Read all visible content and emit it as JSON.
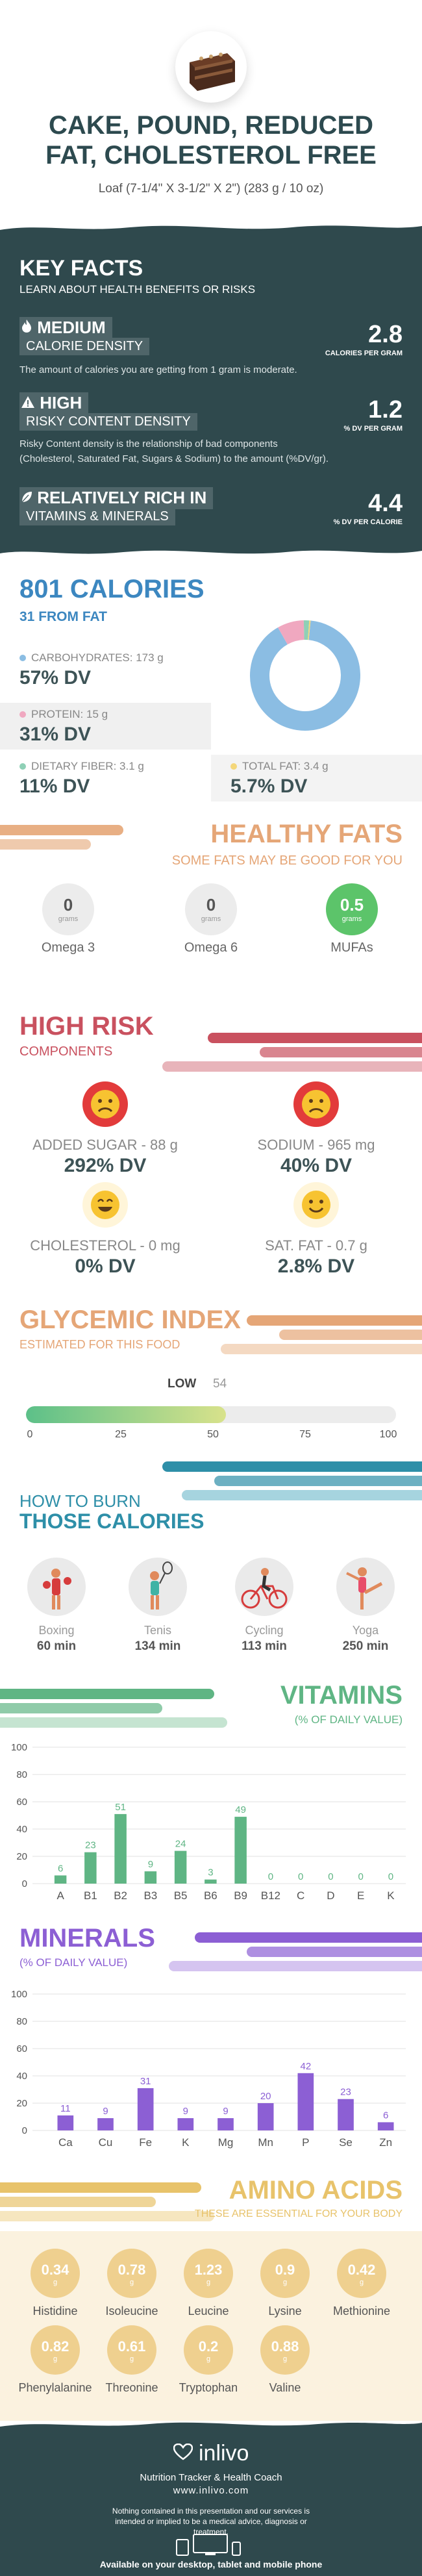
{
  "header": {
    "title_line1": "CAKE, POUND, REDUCED",
    "title_line2": "FAT, CHOLESTEROL FREE",
    "serving": "Loaf (7-1/4\" X 3-1/2\" X 2\") (283 g / 10 oz)"
  },
  "key_facts": {
    "title": "KEY FACTS",
    "subtitle": "LEARN ABOUT HEALTH BENEFITS OR RISKS",
    "calorie_density": {
      "level": "MEDIUM",
      "label": "CALORIE DENSITY",
      "description": "The amount of calories you are getting from 1 gram is moderate.",
      "value": "2.8",
      "unit": "CALORIES PER GRAM",
      "icon": "flame-icon"
    },
    "risky_content": {
      "level": "HIGH",
      "label": "RISKY CONTENT DENSITY",
      "description_line1": "Risky Content density is the relationship of bad components",
      "description_line2": "(Cholesterol, Saturated Fat, Sugars & Sodium) to the amount (%DV/gr).",
      "value": "1.2",
      "unit": "% DV PER GRAM",
      "icon": "warning-icon"
    },
    "vitamins_minerals": {
      "level": "RELATIVELY RICH  IN",
      "label": "VITAMINS & MINERALS",
      "value": "4.4",
      "unit": "% DV PER CALORIE",
      "icon": "leaf-icon"
    }
  },
  "calories": {
    "title": "801 CALORIES",
    "from_fat": "31 FROM FAT",
    "carbohydrates": {
      "label": "CARBOHYDRATES: 173 g",
      "dv": "57% DV",
      "color": "#8bbde3"
    },
    "protein": {
      "label": "PROTEIN: 15 g",
      "dv": "31% DV",
      "color": "#f0a8c0"
    },
    "fiber": {
      "label": "DIETARY FIBER: 3.1 g",
      "dv": "11% DV",
      "color": "#8fd0b6"
    },
    "fat": {
      "label": "TOTAL FAT: 3.4 g",
      "dv": "5.7% DV",
      "color": "#f4d77a"
    },
    "donut_fractions": [
      0.902,
      0.078,
      0.016,
      0.004
    ]
  },
  "healthy_fats": {
    "title": "HEALTHY FATS",
    "subtitle": "SOME FATS MAY BE GOOD FOR YOU",
    "grams_label": "grams",
    "items": [
      {
        "name": "Omega 3",
        "value": "0"
      },
      {
        "name": "Omega 6",
        "value": "0"
      },
      {
        "name": "MUFAs",
        "value": "0.5"
      }
    ],
    "color": "#e5a677",
    "highlight": "#5cc46a"
  },
  "high_risk": {
    "title": "HIGH RISK",
    "subtitle": "COMPONENTS",
    "color": "#c9515f",
    "items": [
      {
        "label": "ADDED SUGAR - 88 g",
        "dv": "292% DV",
        "face": "sick-face-icon"
      },
      {
        "label": "SODIUM - 965 mg",
        "dv": "40% DV",
        "face": "sad-face-icon"
      },
      {
        "label": "CHOLESTEROL - 0 mg",
        "dv": "0% DV",
        "face": "happy-face-icon"
      },
      {
        "label": "SAT. FAT - 0.7 g",
        "dv": "2.8% DV",
        "face": "smile-face-icon"
      }
    ]
  },
  "glycemic": {
    "title": "GLYCEMIC INDEX",
    "subtitle": "ESTIMATED FOR THIS FOOD",
    "level": "LOW",
    "value": "54",
    "value_num": 54,
    "ticks": [
      "0",
      "25",
      "50",
      "75",
      "100"
    ],
    "color": "#e5a677"
  },
  "burn": {
    "title_line1": "HOW TO BURN",
    "title_line2": "THOSE CALORIES",
    "color": "#2e8fa8",
    "activities": [
      {
        "name": "Boxing",
        "minutes": "60 min",
        "icon": "boxing-icon"
      },
      {
        "name": "Tenis",
        "minutes": "134 min",
        "icon": "tennis-icon"
      },
      {
        "name": "Cycling",
        "minutes": "113 min",
        "icon": "cycling-icon"
      },
      {
        "name": "Yoga",
        "minutes": "250 min",
        "icon": "yoga-icon"
      }
    ]
  },
  "vitamins": {
    "title": "VITAMINS",
    "subtitle": "(% OF DAILY VALUE)",
    "color": "#5fb584",
    "chart_data": {
      "type": "bar",
      "categories": [
        "A",
        "B1",
        "B2",
        "B3",
        "B5",
        "B6",
        "B9",
        "B12",
        "C",
        "D",
        "E",
        "K"
      ],
      "values": [
        6,
        23,
        51,
        9,
        24,
        3,
        49,
        0,
        0,
        0,
        0,
        0
      ],
      "yticks": [
        "0",
        "20",
        "40",
        "60",
        "80",
        "100"
      ],
      "ylim": [
        0,
        100
      ]
    }
  },
  "minerals": {
    "title": "MINERALS",
    "subtitle": "(% OF DAILY VALUE)",
    "color": "#8c5fd4",
    "chart_data": {
      "type": "bar",
      "categories": [
        "Ca",
        "Cu",
        "Fe",
        "K",
        "Mg",
        "Mn",
        "P",
        "Se",
        "Zn"
      ],
      "values": [
        11,
        9,
        31,
        9,
        9,
        20,
        42,
        23,
        6
      ],
      "yticks": [
        "0",
        "20",
        "40",
        "60",
        "80",
        "100"
      ],
      "ylim": [
        0,
        100
      ]
    }
  },
  "amino": {
    "title": "AMINO ACIDS",
    "subtitle": "THESE ARE ESSENTIAL FOR YOUR BODY",
    "grams_label": "g",
    "color": "#e8c36b",
    "items": [
      {
        "name": "Histidine",
        "value": "0.34"
      },
      {
        "name": "Isoleucine",
        "value": "0.78"
      },
      {
        "name": "Leucine",
        "value": "1.23"
      },
      {
        "name": "Lysine",
        "value": "0.9"
      },
      {
        "name": "Methionine",
        "value": "0.42"
      },
      {
        "name": "Phenylalanine",
        "value": "0.82"
      },
      {
        "name": "Threonine",
        "value": "0.61"
      },
      {
        "name": "Tryptophan",
        "value": "0.2"
      },
      {
        "name": "Valine",
        "value": "0.88"
      }
    ]
  },
  "footer": {
    "brand": "inlivo",
    "tagline": "Nutrition Tracker & Health Coach",
    "url": "www.inlivo.com",
    "disclaimer": "Nothing contained in this presentation and our services is intended or implied to be a medical advice, diagnosis or treatment.",
    "available": "Available on your desktop, tablet and mobile phone"
  }
}
